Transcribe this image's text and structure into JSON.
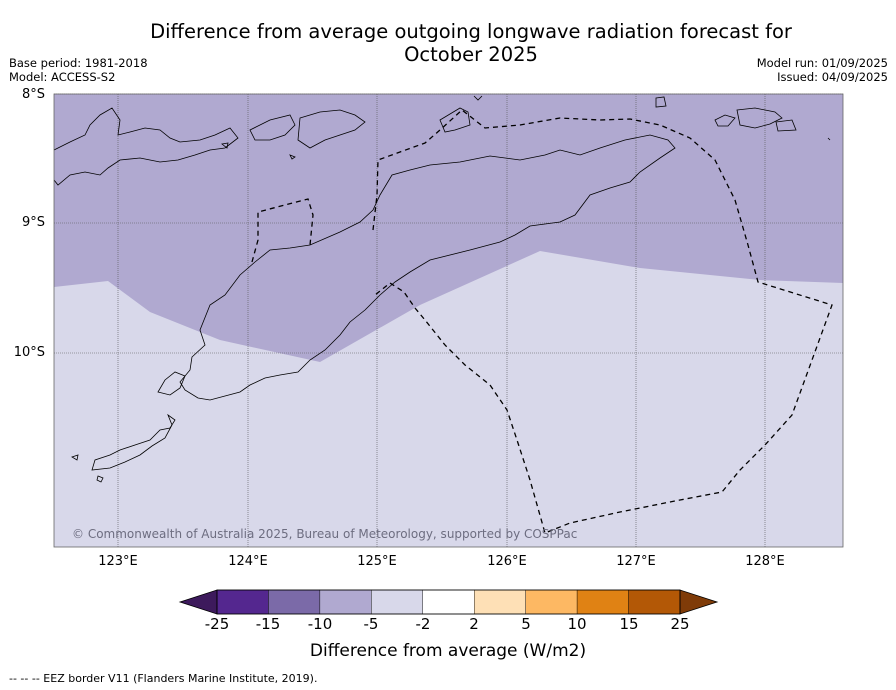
{
  "title_line1": "Difference from average outgoing longwave radiation forecast for",
  "title_line2": "October 2025",
  "base_period": "Base period: 1981-2018",
  "model": "Model: ACCESS-S2",
  "model_run": "Model run: 01/09/2025",
  "issued": "Issued: 04/09/2025",
  "latitude_labels": [
    "8°S",
    "9°S",
    "10°S"
  ],
  "longitude_labels": [
    "123°E",
    "124°E",
    "125°E",
    "126°E",
    "127°E",
    "128°E"
  ],
  "copyright": "© Commonwealth of Australia 2025, Bureau of Meteorology, supported by COSPPac",
  "colorbar": {
    "ticks": [
      "-25",
      "-15",
      "-10",
      "-5",
      "-2",
      "2",
      "5",
      "10",
      "15",
      "25"
    ],
    "colors": [
      "#3d1a5c",
      "#54278f",
      "#7b6aa8",
      "#b0a9d0",
      "#d8d8ea",
      "#ffffff",
      "#fee0b6",
      "#fdb863",
      "#e08214",
      "#b35806",
      "#7f3b08"
    ],
    "label": "Difference from average (W/m2)"
  },
  "map_colors": {
    "band_minus10_to_minus5": "#b0a9d0",
    "band_minus5_to_minus2": "#d8d8ea"
  },
  "footnote": "--  --  -- EEZ border V11 (Flanders Marine Institute, 2019)."
}
